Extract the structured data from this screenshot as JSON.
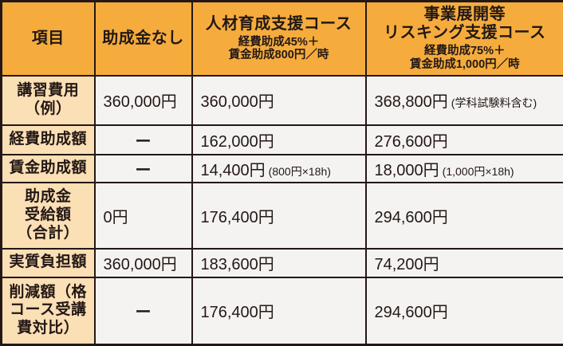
{
  "colors": {
    "header_bg": "#F5AC3D",
    "label_bg": "#FBDFB5",
    "value_bg": "#F4F3F1",
    "border_color": "#231815",
    "text_color": "#231815"
  },
  "table": {
    "columns": [
      {
        "title": "項目",
        "subtitle": ""
      },
      {
        "title": "助成金なし",
        "subtitle": ""
      },
      {
        "title": "人材育成支援コース",
        "subtitle": "経費助成45%＋\n賃金助成800円／時"
      },
      {
        "title": "事業展開等\nリスキング支援コース",
        "subtitle": "経費助成75%＋\n賃金助成1,000円／時"
      }
    ],
    "rows": [
      {
        "label": "講習費用\n（例）",
        "cells": [
          {
            "value": "360,000円",
            "note": ""
          },
          {
            "value": "360,000円",
            "note": ""
          },
          {
            "value": "368,800円",
            "note": "(学科試験料含む)"
          }
        ]
      },
      {
        "label": "経費助成額",
        "cells": [
          {
            "value": "ー",
            "note": ""
          },
          {
            "value": "162,000円",
            "note": ""
          },
          {
            "value": "276,600円",
            "note": ""
          }
        ]
      },
      {
        "label": "賃金助成額",
        "cells": [
          {
            "value": "ー",
            "note": ""
          },
          {
            "value": "14,400円",
            "note": "(800円×18h)"
          },
          {
            "value": "18,000円",
            "note": "(1,000円×18h)"
          }
        ]
      },
      {
        "label": "助成金\n受給額\n（合計）",
        "cells": [
          {
            "value": "0円",
            "note": ""
          },
          {
            "value": "176,400円",
            "note": ""
          },
          {
            "value": "294,600円",
            "note": ""
          }
        ]
      },
      {
        "label": "実質負担額",
        "cells": [
          {
            "value": "360,000円",
            "note": ""
          },
          {
            "value": "183,600円",
            "note": ""
          },
          {
            "value": "74,200円",
            "note": ""
          }
        ]
      },
      {
        "label": "削減額（格\nコース受講\n費対比）",
        "cells": [
          {
            "value": "ー",
            "note": ""
          },
          {
            "value": "176,400円",
            "note": ""
          },
          {
            "value": "294,600円",
            "note": ""
          }
        ]
      }
    ]
  }
}
